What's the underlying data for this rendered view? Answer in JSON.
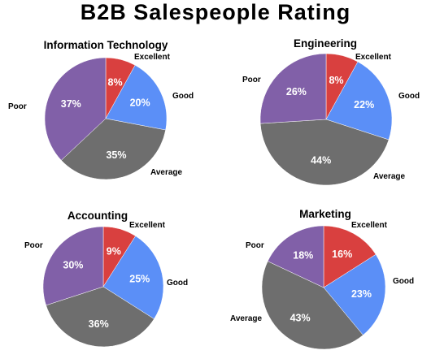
{
  "title": "B2B Salespeople Rating",
  "colors": {
    "Excellent": "#d9403f",
    "Good": "#5b8ff7",
    "Average": "#6e6e6e",
    "Poor": "#8160a8"
  },
  "chart_data": [
    {
      "type": "pie",
      "title": "Information Technology",
      "categories": [
        "Excellent",
        "Good",
        "Average",
        "Poor"
      ],
      "values": [
        8,
        20,
        35,
        37
      ],
      "labels": [
        "8%",
        "20%",
        "35%",
        "37%"
      ]
    },
    {
      "type": "pie",
      "title": "Engineering",
      "categories": [
        "Excellent",
        "Good",
        "Average",
        "Poor"
      ],
      "values": [
        8,
        22,
        44,
        26
      ],
      "labels": [
        "8%",
        "22%",
        "44%",
        "26%"
      ]
    },
    {
      "type": "pie",
      "title": "Accounting",
      "categories": [
        "Excellent",
        "Good",
        "Average",
        "Poor"
      ],
      "values": [
        9,
        25,
        36,
        30
      ],
      "labels": [
        "9%",
        "25%",
        "36%",
        "30%"
      ]
    },
    {
      "type": "pie",
      "title": "Marketing",
      "categories": [
        "Excellent",
        "Good",
        "Average",
        "Poor"
      ],
      "values": [
        16,
        23,
        43,
        18
      ],
      "labels": [
        "16%",
        "23%",
        "43%",
        "18%"
      ]
    }
  ]
}
